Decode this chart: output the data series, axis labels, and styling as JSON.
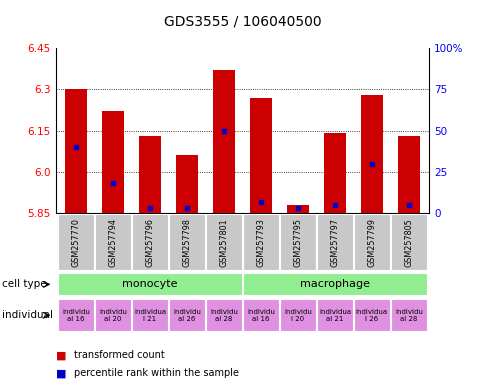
{
  "title": "GDS3555 / 106040500",
  "samples": [
    "GSM257770",
    "GSM257794",
    "GSM257796",
    "GSM257798",
    "GSM257801",
    "GSM257793",
    "GSM257795",
    "GSM257797",
    "GSM257799",
    "GSM257805"
  ],
  "red_values": [
    6.3,
    6.22,
    6.13,
    6.06,
    6.37,
    6.27,
    5.88,
    6.14,
    6.28,
    6.13
  ],
  "blue_values_pct": [
    40,
    18,
    3,
    3,
    50,
    7,
    3,
    5,
    30,
    5
  ],
  "ymin": 5.85,
  "ymax": 6.45,
  "yright_min": 0,
  "yright_max": 100,
  "yticks_left": [
    5.85,
    6.0,
    6.15,
    6.3,
    6.45
  ],
  "yticks_right": [
    0,
    25,
    50,
    75,
    100
  ],
  "ytick_labels_right": [
    "0",
    "25",
    "50",
    "75",
    "100%"
  ],
  "cell_type_color": "#90ee90",
  "sample_bg_color": "#c8c8c8",
  "indiv_bg_color": "#e090e0",
  "bar_color": "#cc0000",
  "marker_color": "#0000cc",
  "legend_red": "transformed count",
  "legend_blue": "percentile rank within the sample",
  "indiv_labels": [
    "individu\nal 16",
    "individu\nal 20",
    "individua\nl 21",
    "individu\nal 26",
    "individu\nal 28",
    "individu\nal 16",
    "individu\nl 20",
    "individua\nal 21",
    "individua\nl 26",
    "individu\nal 28"
  ]
}
